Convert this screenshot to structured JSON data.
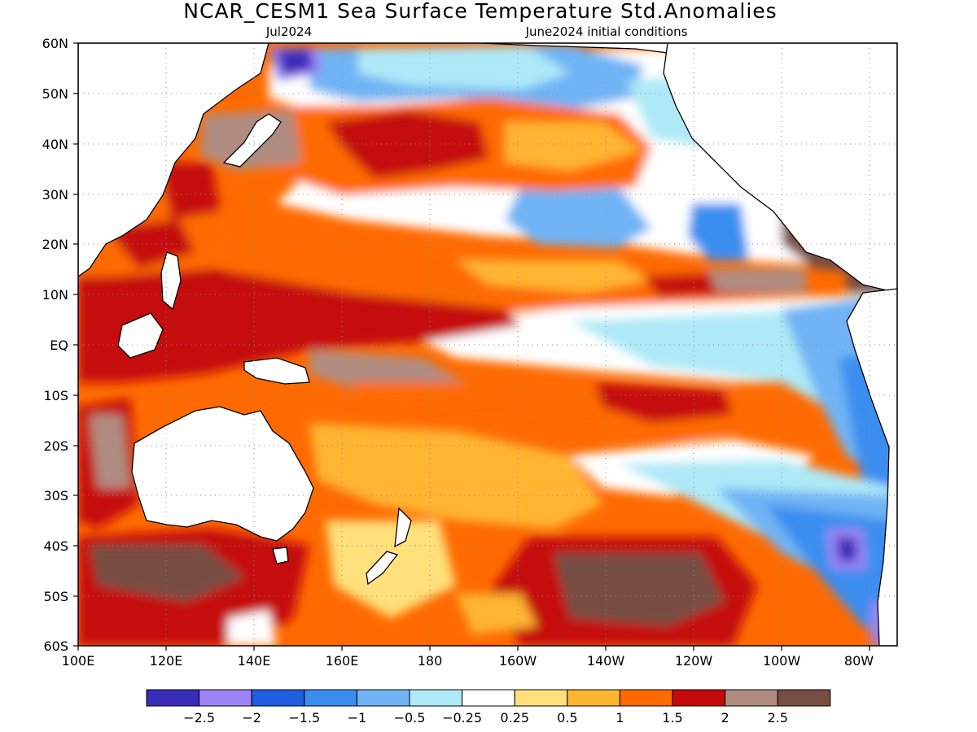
{
  "title": "NCAR_CESM1 Sea Surface Temperature Std.Anomalies",
  "subtitle_left": "Jul2024",
  "subtitle_right": "June2024 initial conditions",
  "lat_labels": [
    "60N",
    "50N",
    "40N",
    "30N",
    "20N",
    "10N",
    "EQ",
    "10S",
    "20S",
    "30S",
    "40S",
    "50S",
    "60S"
  ],
  "lon_labels": [
    "100E",
    "120E",
    "140E",
    "160E",
    "180",
    "160W",
    "140W",
    "120W",
    "100W",
    "80W"
  ],
  "colorbar": {
    "colors": [
      "#3a2bb8",
      "#9c83f5",
      "#1f5fe0",
      "#3a8ef0",
      "#70b4f5",
      "#aee9f7",
      "#ffffff",
      "#ffe07a",
      "#ffb531",
      "#ff6a00",
      "#c50a0a",
      "#b08c80",
      "#774e42"
    ],
    "labels": [
      "−2.5",
      "−2",
      "−1.5",
      "−1",
      "−0.5",
      "−0.25",
      "0.25",
      "0.5",
      "1",
      "1.5",
      "2",
      "2.5"
    ]
  }
}
